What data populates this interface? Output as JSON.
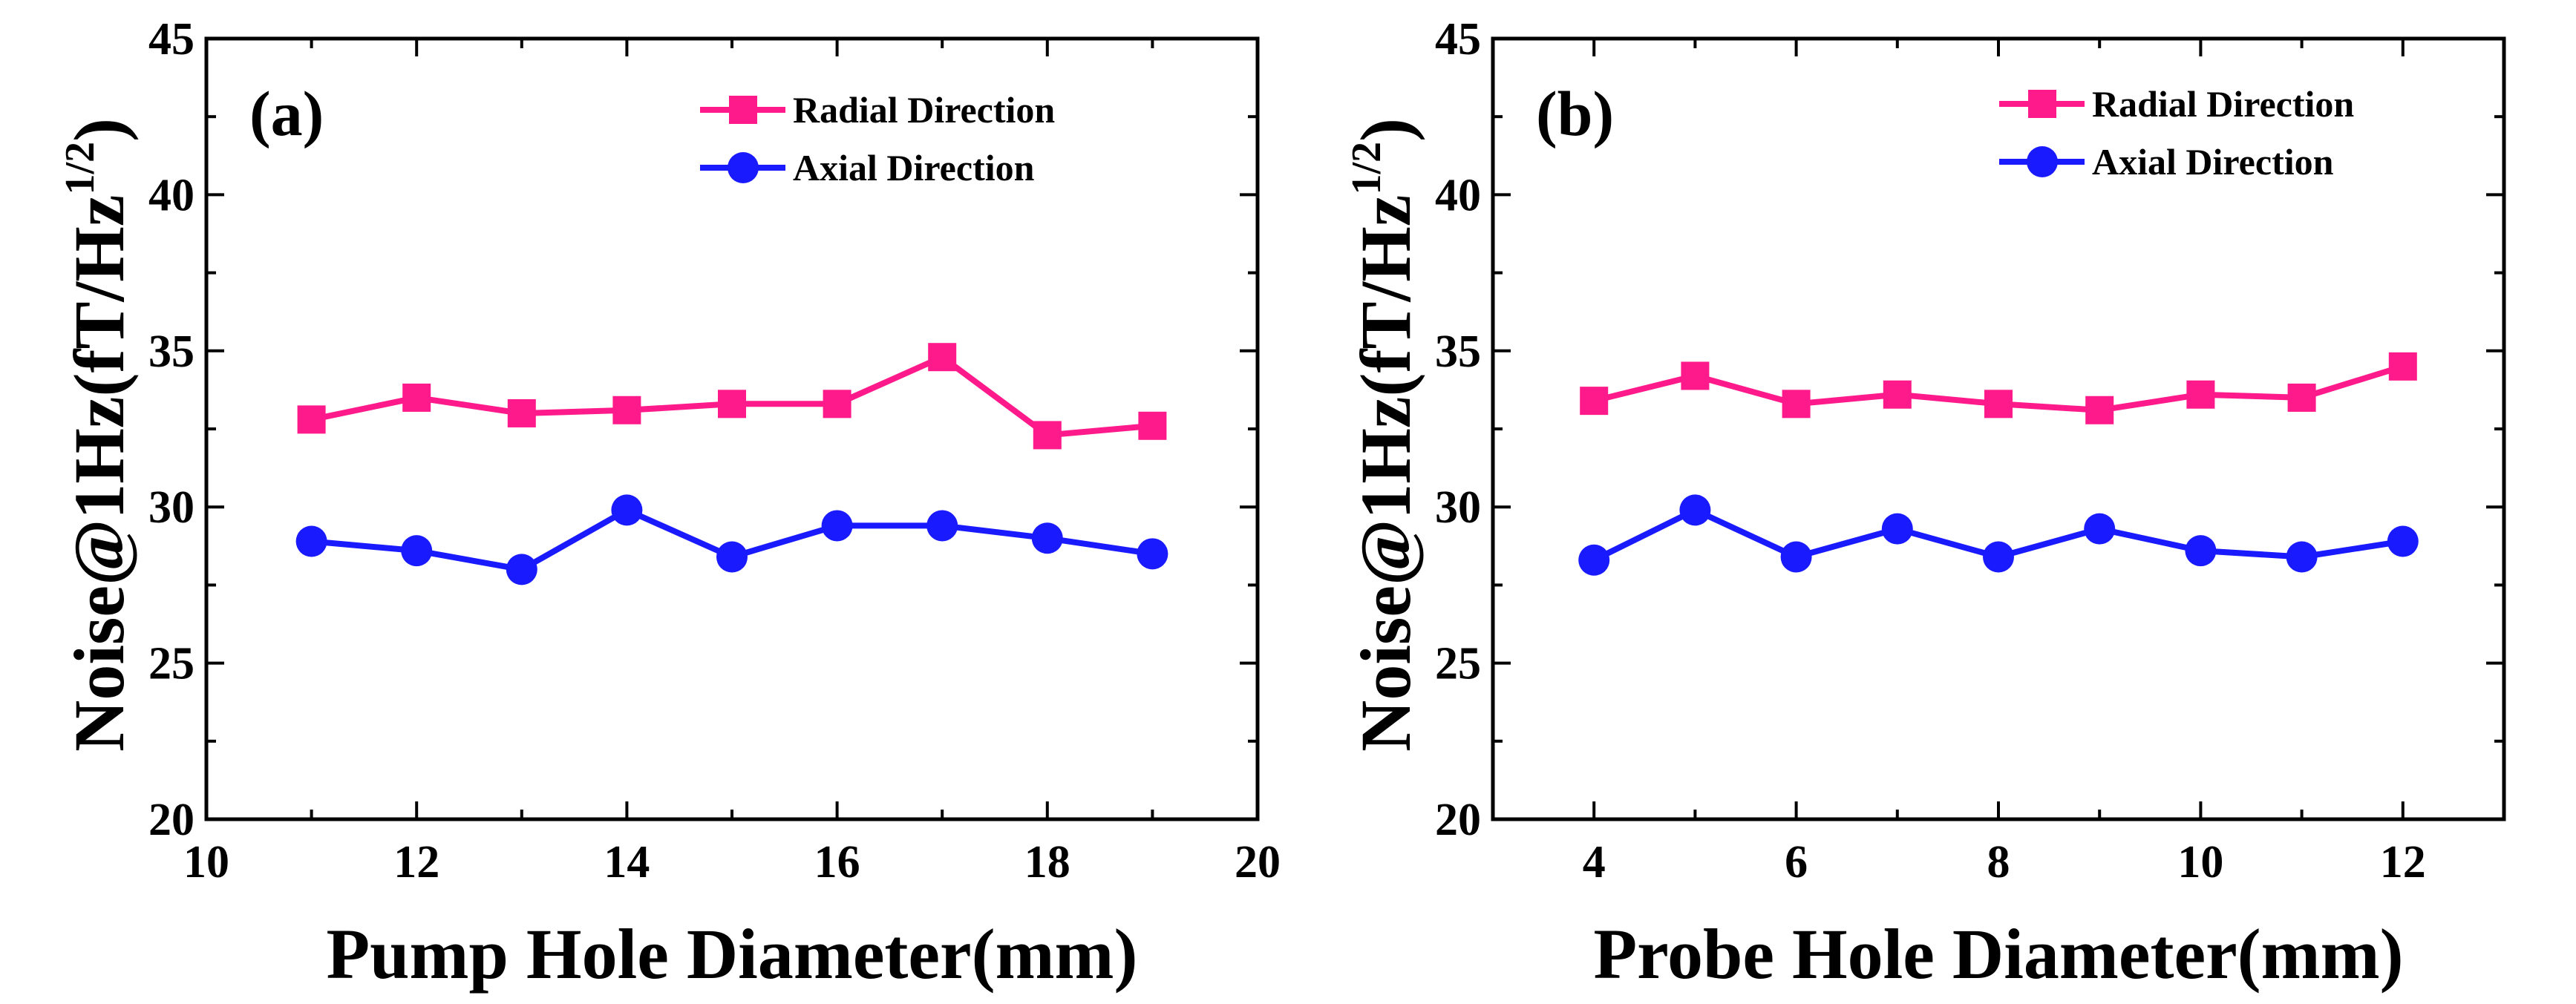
{
  "chart_data": [
    {
      "type": "line",
      "panel_label": "(a)",
      "xlabel": "Pump Hole Diameter(mm)",
      "ylabel_main": "Noise@1Hz(fT/Hz",
      "ylabel_sup": "1/2",
      "ylabel_close": ")",
      "xlim": [
        10,
        20
      ],
      "ylim": [
        20,
        45
      ],
      "xticks": [
        10,
        12,
        14,
        16,
        18,
        20
      ],
      "xtick_labels": [
        "10",
        "12",
        "14",
        "16",
        "18",
        "20"
      ],
      "yticks": [
        20,
        25,
        30,
        35,
        40,
        45
      ],
      "ytick_labels": [
        "20",
        "25",
        "30",
        "35",
        "40",
        "45"
      ],
      "legend_position": "top-right",
      "series": [
        {
          "name": "Radial Direction",
          "marker": "square",
          "color": "#ff1a8c",
          "x": [
            11,
            12,
            13,
            14,
            15,
            16,
            17,
            18,
            19
          ],
          "y": [
            32.8,
            33.5,
            33.0,
            33.1,
            33.3,
            33.3,
            34.8,
            32.3,
            32.6
          ]
        },
        {
          "name": "Axial Direction",
          "marker": "circle",
          "color": "#1a1aff",
          "x": [
            11,
            12,
            13,
            14,
            15,
            16,
            17,
            18,
            19
          ],
          "y": [
            28.9,
            28.6,
            28.0,
            29.9,
            28.4,
            29.4,
            29.4,
            29.0,
            28.5
          ]
        }
      ]
    },
    {
      "type": "line",
      "panel_label": "(b)",
      "xlabel": "Probe Hole Diameter(mm)",
      "ylabel_main": "Noise@1Hz(fT/Hz",
      "ylabel_sup": "1/2",
      "ylabel_close": ")",
      "xlim": [
        3,
        13
      ],
      "ylim": [
        20,
        45
      ],
      "xticks": [
        4,
        6,
        8,
        10,
        12
      ],
      "xtick_labels": [
        "4",
        "6",
        "8",
        "10",
        "12"
      ],
      "yticks": [
        20,
        25,
        30,
        35,
        40,
        45
      ],
      "ytick_labels": [
        "20",
        "25",
        "30",
        "35",
        "40",
        "45"
      ],
      "legend_position": "top-right",
      "series": [
        {
          "name": "Radial Direction",
          "marker": "square",
          "color": "#ff1a8c",
          "x": [
            4,
            5,
            6,
            7,
            8,
            9,
            10,
            11,
            12
          ],
          "y": [
            33.4,
            34.2,
            33.3,
            33.6,
            33.3,
            33.1,
            33.6,
            33.5,
            34.5
          ]
        },
        {
          "name": "Axial Direction",
          "marker": "circle",
          "color": "#1a1aff",
          "x": [
            4,
            5,
            6,
            7,
            8,
            9,
            10,
            11,
            12
          ],
          "y": [
            28.3,
            29.9,
            28.4,
            29.3,
            28.4,
            29.3,
            28.6,
            28.4,
            28.9
          ]
        }
      ]
    }
  ]
}
